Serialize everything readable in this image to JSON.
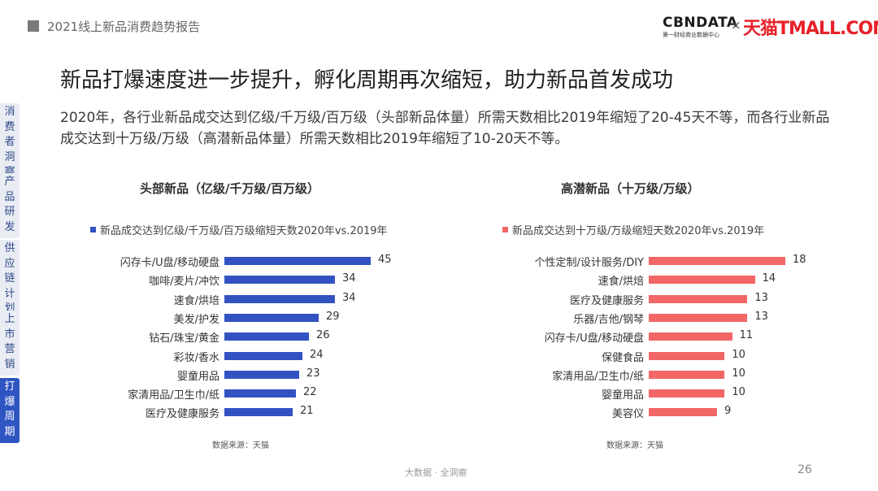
{
  "header": {
    "report_title": "2021线上新品消费趋势报告",
    "logo_cbn": "CBNDATA",
    "logo_cbn_sub": "第一财经商业数据中心",
    "logo_times": "×",
    "logo_tmall": "天猫TMALL.COM"
  },
  "headline": "新品打爆速度进一步提升，孵化周期再次缩短，助力新品首发成功",
  "subtext": "2020年，各行业新品成交达到亿级/千万级/百万级（头部新品体量）所需天数相比2019年缩短了20-45天不等，而各行业新品成交达到十万级/万级（高潜新品体量）所需天数相比2019年缩短了10-20天不等。",
  "side_nav": [
    {
      "label": "消费者洞察",
      "active": false
    },
    {
      "label": "产品研发",
      "active": false
    },
    {
      "label": "供应链计划",
      "active": false
    },
    {
      "label": "上市营销",
      "active": false
    },
    {
      "label": "打爆周期",
      "active": true
    }
  ],
  "chart_data": [
    {
      "type": "bar",
      "orientation": "horizontal",
      "title": "头部新品（亿级/千万级/百万级）",
      "legend": "新品成交达到亿级/千万级/百万级缩短天数2020年vs.2019年",
      "color": "#3352c2",
      "categories": [
        "闪存卡/U盘/移动硬盘",
        "咖啡/麦片/冲饮",
        "速食/烘培",
        "美发/护发",
        "钻石/珠宝/黄金",
        "彩妆/香水",
        "婴童用品",
        "家清用品/卫生巾/纸",
        "医疗及健康服务"
      ],
      "values": [
        45,
        34,
        34,
        29,
        26,
        24,
        23,
        22,
        21
      ],
      "xlim": [
        0,
        45
      ],
      "source": "数据来源：天猫"
    },
    {
      "type": "bar",
      "orientation": "horizontal",
      "title": "高潜新品（十万级/万级）",
      "legend": "新品成交达到十万级/万级缩短天数2020年vs.2019年",
      "color": "#f26766",
      "categories": [
        "个性定制/设计服务/DIY",
        "速食/烘焙",
        "医疗及健康服务",
        "乐器/吉他/钢琴",
        "闪存卡/U盘/移动硬盘",
        "保健食品",
        "家清用品/卫生巾/纸",
        "婴童用品",
        "美容仪"
      ],
      "values": [
        18,
        14,
        13,
        13,
        11,
        10,
        10,
        10,
        9
      ],
      "xlim": [
        0,
        18
      ],
      "source": "数据来源：天猫"
    }
  ],
  "footer": {
    "tagline": "大数据 · 全洞察",
    "page": "26"
  }
}
